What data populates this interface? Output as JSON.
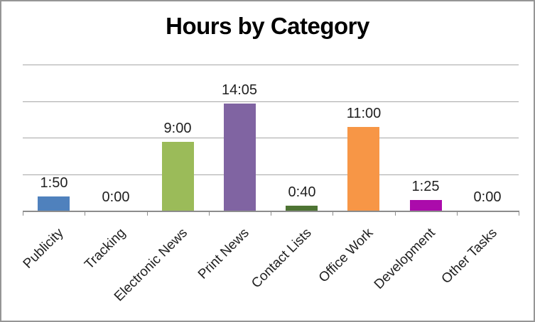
{
  "chart": {
    "title": "Hours by Category"
  },
  "chart_data": {
    "type": "bar",
    "title": "Hours by Category",
    "categories": [
      "Publicity",
      "Tracking",
      "Electronic News",
      "Print News",
      "Contact Lists",
      "Office Work",
      "Development",
      "Other Tasks"
    ],
    "value_labels": [
      "1:50",
      "0:00",
      "9:00",
      "14:05",
      "0:40",
      "11:00",
      "1:25",
      "0:00"
    ],
    "values_hours": [
      1.8333,
      0,
      9,
      14.0833,
      0.6667,
      11,
      1.4167,
      0
    ],
    "bar_colors": [
      "#4F81BD",
      null,
      "#9BBB59",
      "#8064A2",
      "#4E7433",
      "#F79646",
      "#AB0BAB",
      null
    ],
    "xlabel": "",
    "ylabel": "",
    "ylim": [
      0,
      19.2
    ],
    "major_unit_hours": 4.8,
    "gridlines": true,
    "y_axis_tick_labels": false,
    "x_label_rotation_deg": 45,
    "value_label_position": "outside-end",
    "legend": "none",
    "colors": {
      "frame_border": "#969696",
      "gridline": "#A6A6A6",
      "axis_line": "#8C8C8C",
      "label_text": "#1F1F1F",
      "title_text": "#000000"
    }
  }
}
